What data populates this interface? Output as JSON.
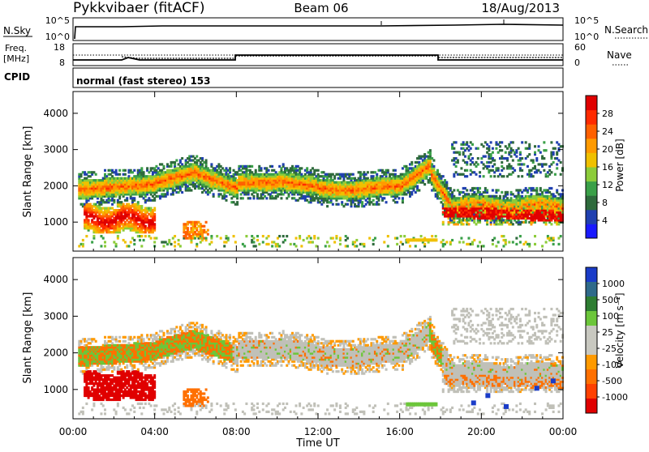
{
  "header": {
    "radar": "Pykkvibaer (fitACF)",
    "beam": "Beam 06",
    "date": "18/Aug/2013"
  },
  "status_panels": {
    "nsky_label": "N.Sky",
    "nsky_ticks": [
      "10^5",
      "10^0"
    ],
    "nsearch_label": "N.Search",
    "nsearch_ticks": [
      "10^5",
      "10^0"
    ],
    "freq_label": "Freq.",
    "freq_unit": "[MHz]",
    "freq_ticks": [
      "18",
      "8"
    ],
    "nave_label": "Nave",
    "nave_ticks": [
      "60",
      "0"
    ],
    "cpid_label": "CPID",
    "cpid_text": "normal (fast stereo) 153"
  },
  "colors": {
    "power_scale": [
      "#1a1aff",
      "#2040b0",
      "#2e6a3c",
      "#3aa048",
      "#8ccc3a",
      "#f0c000",
      "#ff9a00",
      "#ff6000",
      "#ff2a00",
      "#e00000"
    ],
    "velocity_scale": [
      "#1a3cc8",
      "#2f6a8a",
      "#2e7d32",
      "#6cc63a",
      "#c8c8c0",
      "#c8c8c0",
      "#ff9a00",
      "#ff7000",
      "#ff4000",
      "#e00000"
    ],
    "ground_scatter": "#c0c0b8"
  },
  "chart_data": [
    {
      "type": "heatmap",
      "name": "power",
      "ylabel": "Slant Range [km]",
      "yticks": [
        1000,
        2000,
        3000,
        4000
      ],
      "ylim": [
        200,
        4600
      ],
      "xlim": [
        0,
        24
      ],
      "colorbar_label": "Power [dB]",
      "colorbar_ticks": [
        "4",
        "8",
        "12",
        "16",
        "20",
        "24",
        "28"
      ],
      "colorbar_range": [
        0,
        30
      ]
    },
    {
      "type": "heatmap",
      "name": "velocity",
      "ylabel": "Slant Range [km]",
      "yticks": [
        1000,
        2000,
        3000,
        4000
      ],
      "ylim": [
        200,
        4600
      ],
      "xlim": [
        0,
        24
      ],
      "colorbar_label": "Velocity [m s⁻¹]",
      "colorbar_ticks": [
        "1000",
        "500",
        "100",
        "25",
        "-25",
        "-100",
        "-500",
        "-1000"
      ]
    }
  ],
  "xaxis": {
    "ticks": [
      "00:00",
      "04:00",
      "08:00",
      "12:00",
      "16:00",
      "20:00",
      "00:00"
    ],
    "label": "Time UT"
  }
}
